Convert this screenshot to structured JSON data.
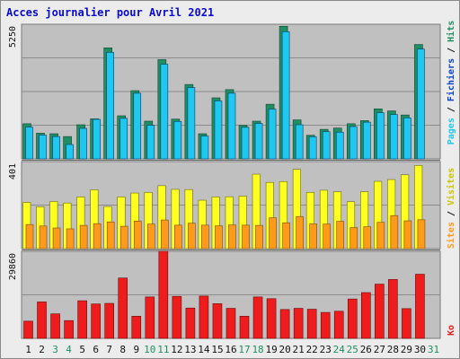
{
  "title": "Acces journalier pour Avril 2021",
  "colors": {
    "panel_bg": "#c0c0c0",
    "grid": "#8c8c8c",
    "pages": "#1ec8f0",
    "hits": "#1f8f63",
    "fichiers": "#0b44c8",
    "visites": "#ffff20",
    "sites": "#ff9a1a",
    "ko": "#ee1c1c",
    "weekend_label": "#1f8f63",
    "weekday_label": "#111111",
    "separator": "#6a6a6a"
  },
  "chart_data": [
    {
      "type": "bar",
      "ymax_label": "5250",
      "ylim": [
        0,
        5250
      ],
      "legend": [
        "Pages",
        "Fichiers",
        "Hits"
      ],
      "categories": [
        "1",
        "2",
        "3",
        "4",
        "5",
        "6",
        "7",
        "8",
        "9",
        "10",
        "11",
        "12",
        "13",
        "14",
        "15",
        "16",
        "17",
        "18",
        "19",
        "20",
        "21",
        "22",
        "23",
        "24",
        "25",
        "26",
        "27",
        "28",
        "29",
        "30",
        "31"
      ],
      "weekend": [
        3,
        4,
        10,
        11,
        17,
        18,
        24,
        25,
        31
      ],
      "series": [
        {
          "name": "Hits",
          "values": [
            1370,
            1000,
            980,
            870,
            1330,
            1560,
            4330,
            1680,
            2660,
            1470,
            3870,
            1550,
            2900,
            980,
            2380,
            2700,
            1310,
            1470,
            2130,
            5170,
            1520,
            920,
            1150,
            1200,
            1370,
            1490,
            1950,
            1870,
            1710,
            4460,
            0
          ]
        },
        {
          "name": "Pages",
          "values": [
            1240,
            930,
            870,
            560,
            1190,
            1540,
            4150,
            1580,
            2560,
            1310,
            3690,
            1460,
            2780,
            890,
            2260,
            2560,
            1230,
            1380,
            1940,
            4960,
            1330,
            860,
            1060,
            1040,
            1260,
            1430,
            1800,
            1730,
            1600,
            4280,
            0
          ]
        }
      ]
    },
    {
      "type": "bar",
      "ymax_label": "401",
      "ylim": [
        0,
        401
      ],
      "legend": [
        "Sites",
        "Visites"
      ],
      "categories": [
        "1",
        "2",
        "3",
        "4",
        "5",
        "6",
        "7",
        "8",
        "9",
        "10",
        "11",
        "12",
        "13",
        "14",
        "15",
        "16",
        "17",
        "18",
        "19",
        "20",
        "21",
        "22",
        "23",
        "24",
        "25",
        "26",
        "27",
        "28",
        "29",
        "30",
        "31"
      ],
      "series": [
        {
          "name": "Visites",
          "values": [
            213,
            193,
            217,
            210,
            238,
            271,
            194,
            238,
            256,
            259,
            290,
            273,
            272,
            223,
            238,
            239,
            242,
            343,
            305,
            309,
            365,
            259,
            269,
            262,
            216,
            262,
            310,
            318,
            340,
            383,
            0
          ]
        },
        {
          "name": "Sites",
          "values": [
            111,
            104,
            95,
            91,
            107,
            115,
            123,
            103,
            127,
            113,
            132,
            108,
            117,
            108,
            105,
            109,
            108,
            107,
            142,
            119,
            148,
            114,
            113,
            126,
            97,
            101,
            121,
            152,
            128,
            133,
            0
          ]
        }
      ]
    },
    {
      "type": "bar",
      "ymax_label": "29860",
      "ylim": [
        0,
        29860
      ],
      "legend": [
        "Ko"
      ],
      "categories": [
        "1",
        "2",
        "3",
        "4",
        "5",
        "6",
        "7",
        "8",
        "9",
        "10",
        "11",
        "12",
        "13",
        "14",
        "15",
        "16",
        "17",
        "18",
        "19",
        "20",
        "21",
        "22",
        "23",
        "24",
        "25",
        "26",
        "27",
        "28",
        "29",
        "30",
        "31"
      ],
      "series": [
        {
          "name": "Ko",
          "values": [
            5900,
            12500,
            8400,
            6100,
            12900,
            11800,
            12000,
            20700,
            7600,
            14200,
            29860,
            14400,
            10400,
            14500,
            11900,
            10300,
            7600,
            14200,
            13600,
            9900,
            10300,
            10000,
            8900,
            9300,
            13500,
            15700,
            18600,
            20200,
            10200,
            22000,
            0
          ]
        }
      ]
    }
  ]
}
